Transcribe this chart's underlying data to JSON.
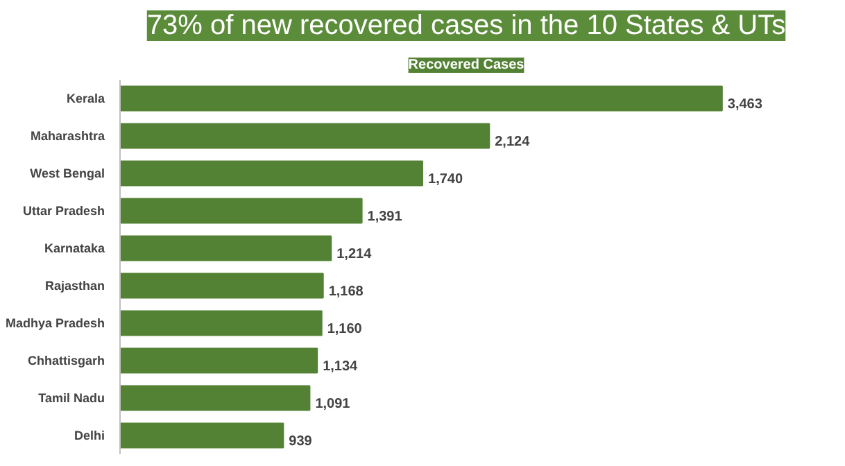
{
  "chart_data": {
    "type": "bar",
    "orientation": "horizontal",
    "title": "73% of new recovered cases in the 10 States & UTs",
    "subtitle": "Recovered Cases",
    "categories": [
      "Kerala",
      "Maharashtra",
      "West Bengal",
      "Uttar Pradesh",
      "Karnataka",
      "Rajasthan",
      "Madhya Pradesh",
      "Chhattisgarh",
      "Tamil Nadu",
      "Delhi"
    ],
    "values": [
      3463,
      2124,
      1740,
      1391,
      1214,
      1168,
      1160,
      1134,
      1091,
      939
    ],
    "value_labels": [
      "3,463",
      "2,124",
      "1,740",
      "1,391",
      "1,214",
      "1,168",
      "1,160",
      "1,134",
      "1,091",
      "939"
    ],
    "color": "#548235"
  }
}
